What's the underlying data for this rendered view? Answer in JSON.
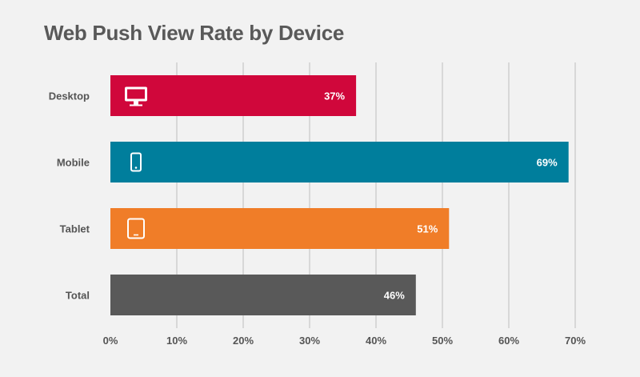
{
  "title": "Web Push View Rate by Device",
  "chart_data": {
    "type": "bar",
    "orientation": "horizontal",
    "title": "Web Push View Rate by Device",
    "categories": [
      "Desktop",
      "Mobile",
      "Tablet",
      "Total"
    ],
    "values": [
      37,
      69,
      51,
      46
    ],
    "value_labels": [
      "37%",
      "69%",
      "51%",
      "46%"
    ],
    "bar_colors": [
      "#d0073b",
      "#007e9c",
      "#f07d28",
      "#595959"
    ],
    "icons": [
      "desktop-monitor-icon",
      "mobile-phone-icon",
      "tablet-icon",
      ""
    ],
    "xlim": [
      0,
      70
    ],
    "xticks": [
      "0%",
      "10%",
      "20%",
      "30%",
      "40%",
      "50%",
      "60%",
      "70%"
    ],
    "grid": true,
    "xlabel": "",
    "ylabel": ""
  }
}
